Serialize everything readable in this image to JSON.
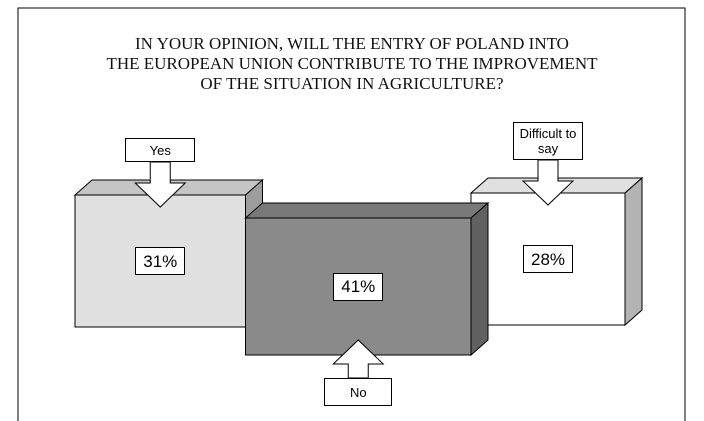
{
  "chart_data": {
    "type": "block",
    "title": "IN YOUR OPINION, WILL THE ENTRY OF POLAND INTO\nTHE EUROPEAN UNION CONTRIBUTE TO THE IMPROVEMENT\nOF THE SITUATION IN AGRICULTURE?",
    "categories": [
      "Yes",
      "No",
      "Difficult to say"
    ],
    "values": [
      31,
      41,
      28
    ],
    "value_labels": [
      "31%",
      "41%",
      "28%"
    ],
    "colors": [
      "#e0e0e0",
      "#8a8a8a",
      "#ffffff"
    ]
  }
}
